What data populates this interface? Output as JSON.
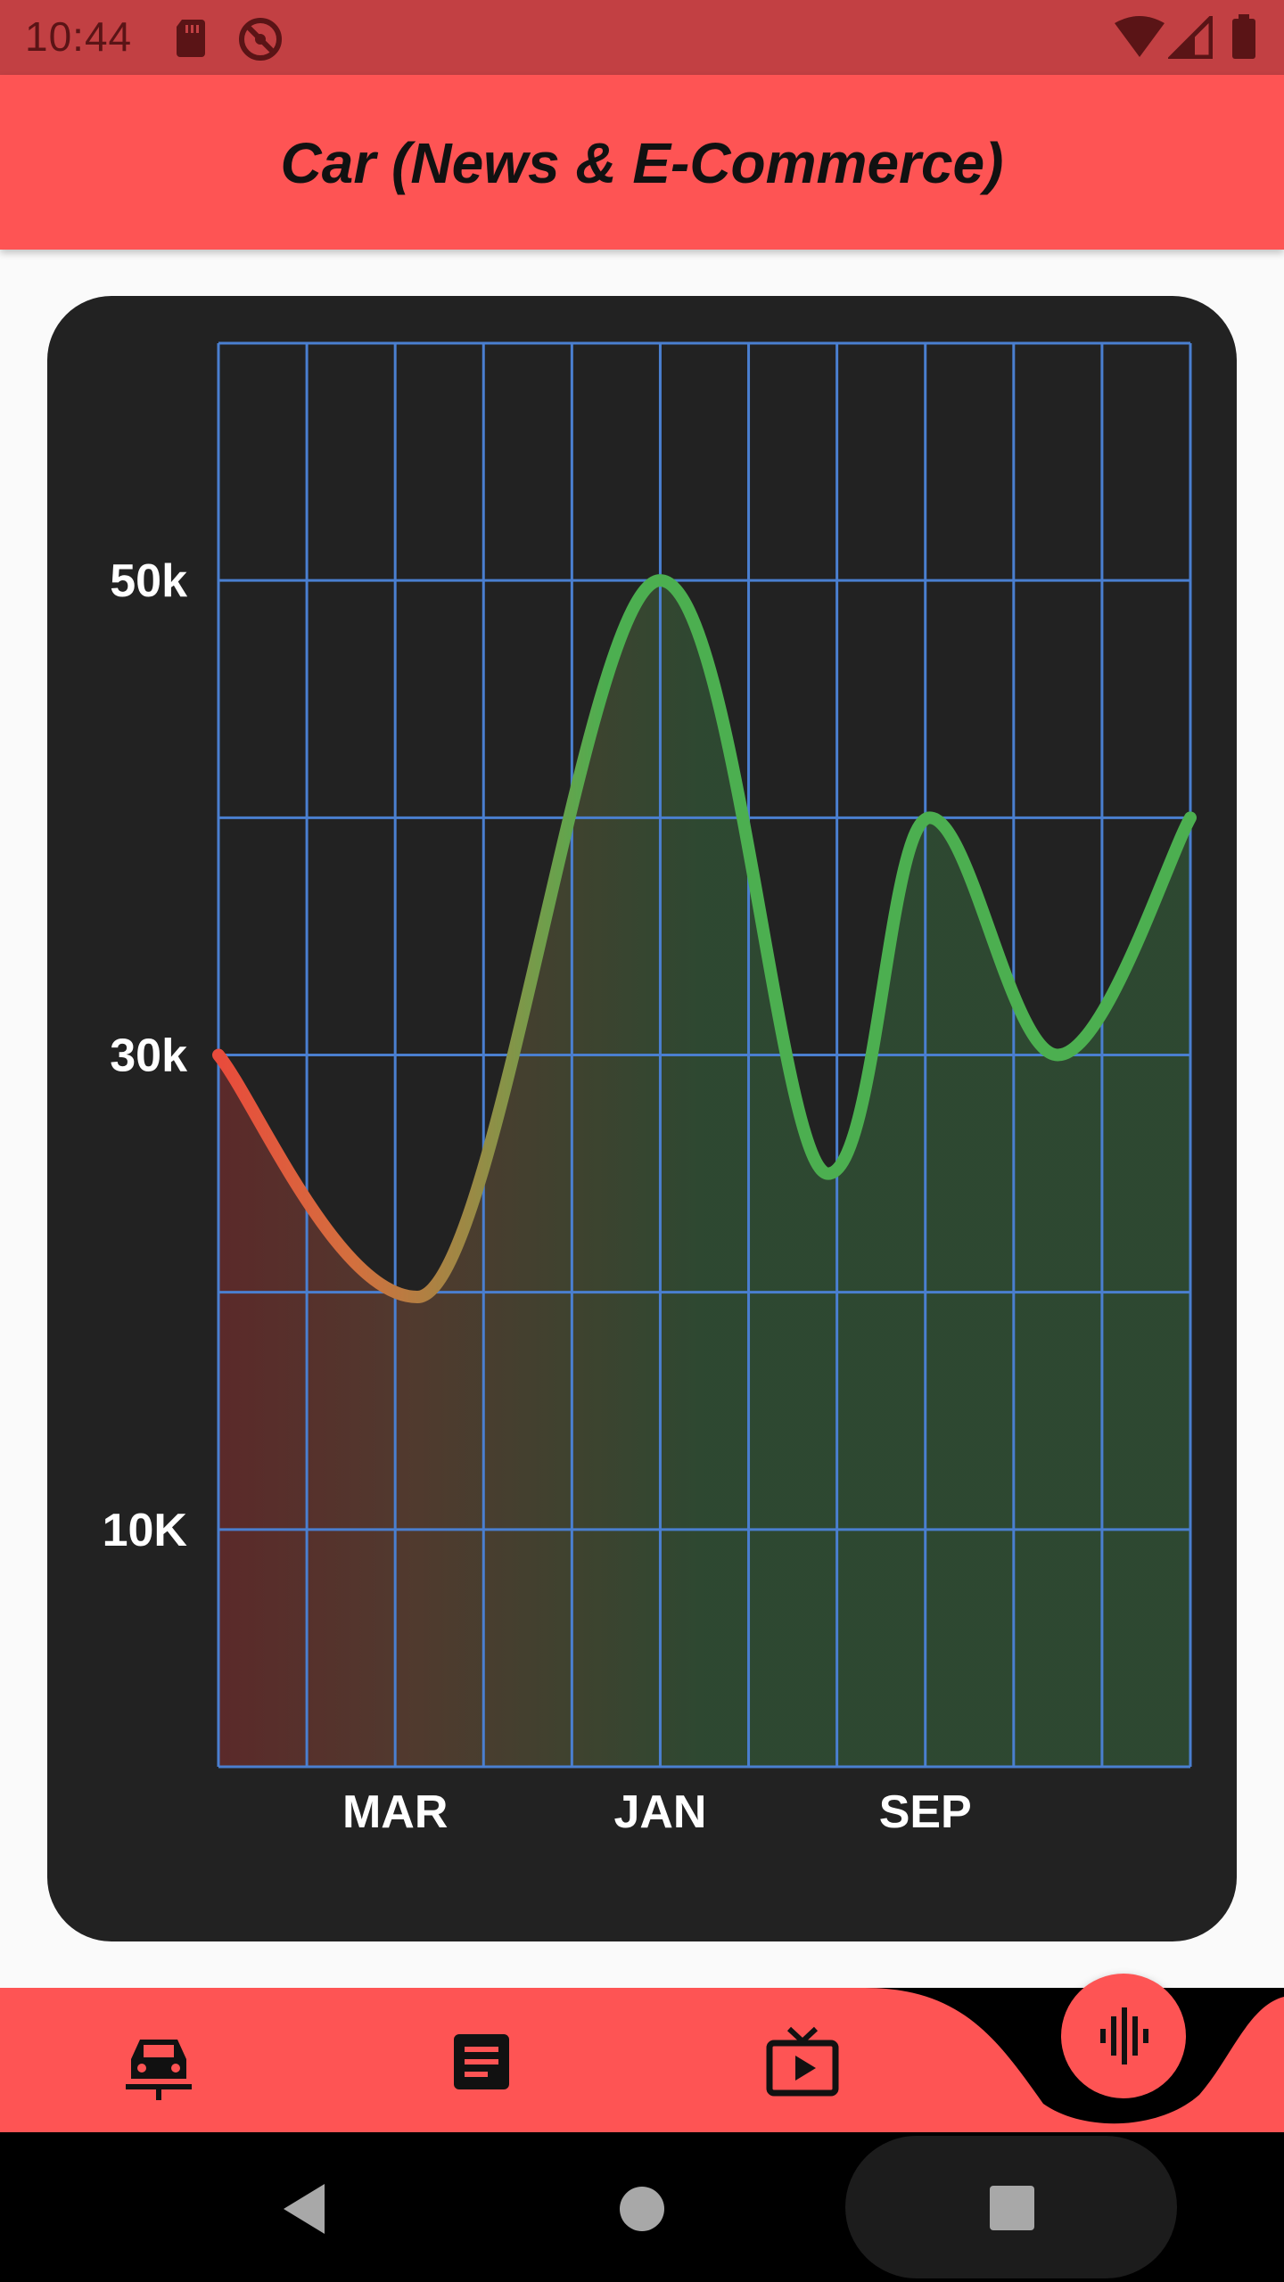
{
  "status_bar": {
    "time": "10:44",
    "icons": [
      "sd-card-icon",
      "do-not-disturb-icon",
      "wifi-icon",
      "cellular-signal-icon",
      "battery-icon"
    ]
  },
  "app_bar": {
    "title": "Car (News & E-Commerce)",
    "background_color": "#fe5454"
  },
  "chart_data": {
    "type": "area",
    "title": "",
    "xlabel": "",
    "ylabel": "",
    "y_tick_labels": [
      {
        "label": "50k",
        "value": 50000
      },
      {
        "label": "30k",
        "value": 30000
      },
      {
        "label": "10K",
        "value": 10000
      }
    ],
    "x_tick_labels": [
      {
        "label": "MAR",
        "x": 2
      },
      {
        "label": "JAN",
        "x": 5
      },
      {
        "label": "SEP",
        "x": 8
      }
    ],
    "xlim": [
      0,
      11
    ],
    "ylim": [
      0,
      60000
    ],
    "grid": true,
    "grid_color": "#4a7fd0",
    "line_gradient": [
      "#e94b3c",
      "#4caf50"
    ],
    "series": [
      {
        "points": [
          {
            "x": 0,
            "y": 30000
          },
          {
            "x": 2.25,
            "y": 19800
          },
          {
            "x": 5.0,
            "y": 50000
          },
          {
            "x": 6.9,
            "y": 25000
          },
          {
            "x": 8.05,
            "y": 40000
          },
          {
            "x": 9.5,
            "y": 30000
          },
          {
            "x": 11,
            "y": 40000
          }
        ]
      }
    ]
  },
  "bottom_nav": {
    "items": [
      {
        "icon": "car-icon"
      },
      {
        "icon": "article-icon"
      },
      {
        "icon": "live-tv-icon"
      }
    ],
    "fab_icon": "voice-waveform-icon",
    "background_color": "#fe5454"
  },
  "system_nav": {
    "icons": [
      "back-icon",
      "home-icon",
      "recents-icon"
    ]
  }
}
